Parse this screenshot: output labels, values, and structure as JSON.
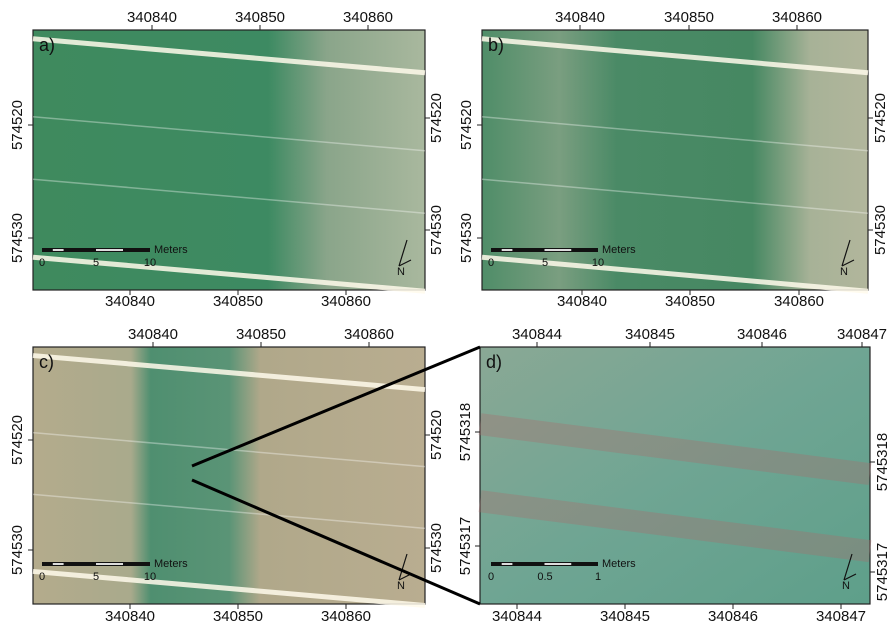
{
  "panels": [
    {
      "label": "a)",
      "top_ticks": [
        "340840",
        "340850",
        "340860"
      ],
      "bottom_ticks": [
        "340840",
        "340850",
        "340860"
      ],
      "left_ticks": [
        "574520",
        "574530"
      ],
      "right_ticks": [
        "574520",
        "574530"
      ],
      "scale": {
        "unit": "Meters",
        "ticks": [
          "0",
          "5",
          "10"
        ]
      },
      "north": "N"
    },
    {
      "label": "b)",
      "top_ticks": [
        "340840",
        "340850",
        "340860"
      ],
      "bottom_ticks": [
        "340840",
        "340850",
        "340860"
      ],
      "left_ticks": [
        "574520",
        "574530"
      ],
      "right_ticks": [
        "574520",
        "574530"
      ],
      "scale": {
        "unit": "Meters",
        "ticks": [
          "0",
          "5",
          "10"
        ]
      },
      "north": "N"
    },
    {
      "label": "c)",
      "top_ticks": [
        "340840",
        "340850",
        "340860"
      ],
      "bottom_ticks": [
        "340840",
        "340850",
        "340860"
      ],
      "left_ticks": [
        "574520",
        "574530"
      ],
      "right_ticks": [
        "574520",
        "574530"
      ],
      "scale": {
        "unit": "Meters",
        "ticks": [
          "0",
          "5",
          "10"
        ]
      },
      "north": "N"
    },
    {
      "label": "d)",
      "top_ticks": [
        "340844",
        "340845",
        "340846",
        "340847"
      ],
      "bottom_ticks": [
        "340844",
        "340845",
        "340846",
        "340847"
      ],
      "left_ticks": [
        "5745318",
        "5745317"
      ],
      "right_ticks": [
        "5745318",
        "5745317"
      ],
      "scale": {
        "unit": "Meters",
        "ticks": [
          "0",
          "0.5",
          "1"
        ]
      },
      "north": "N"
    }
  ]
}
